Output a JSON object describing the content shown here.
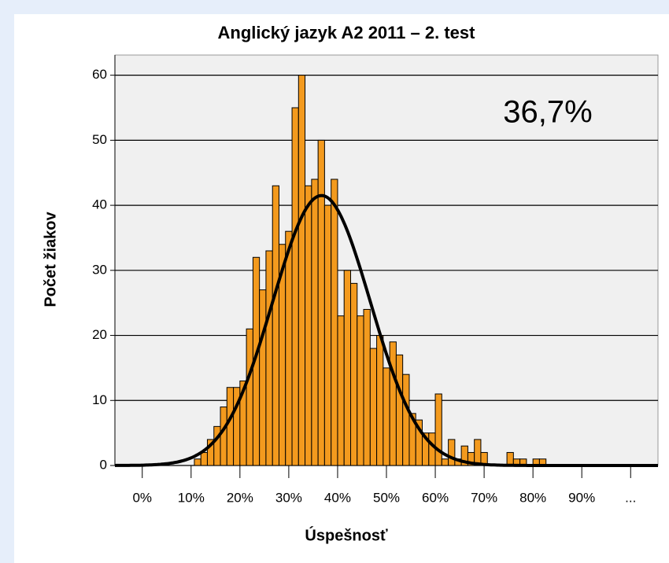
{
  "chart_data": {
    "type": "histogram",
    "title": "Anglický jazyk A2 2011 – 2. test",
    "x_label": "Úspešnosť",
    "y_label": "Počet žiakov",
    "annotation": "36,7%",
    "color": "#f39a1e",
    "bins": [
      10.67,
      12,
      13.33,
      14.67,
      16,
      17.33,
      18.67,
      20,
      21.33,
      22.67,
      24,
      25.33,
      26.67,
      28,
      29.33,
      30.67,
      32,
      33.33,
      34.67,
      36,
      37.33,
      38.67,
      40,
      41.33,
      42.67,
      44,
      45.33,
      46.67,
      48,
      49.33,
      50.67,
      52,
      53.33,
      54.67,
      56,
      57.33,
      58.67,
      60,
      61.33,
      62.67,
      64,
      65.33,
      66.67,
      68,
      69.33,
      70.67,
      72,
      73.33,
      74.67,
      76,
      77.33,
      78.67,
      80,
      81.33,
      82.67
    ],
    "values": [
      1,
      2,
      4,
      6,
      9,
      12,
      12,
      13,
      21,
      32,
      27,
      33,
      43,
      34,
      36,
      55,
      60,
      43,
      44,
      50,
      40,
      44,
      23,
      30,
      28,
      23,
      24,
      18,
      20,
      15,
      19,
      17,
      14,
      8,
      7,
      5,
      5,
      11,
      1,
      4,
      1,
      3,
      2,
      4,
      2,
      0,
      0,
      0,
      2,
      1,
      1,
      0,
      1,
      1
    ],
    "curve": {
      "mean": 36.7,
      "sd": 10,
      "peak": 41.5,
      "color": "#000000"
    },
    "xlim": [
      -5.6,
      105.6
    ],
    "ylim": [
      0,
      63.1
    ],
    "xticks": [
      {
        "value": 0,
        "label": "0%"
      },
      {
        "value": 10,
        "label": "10%"
      },
      {
        "value": 20,
        "label": "20%"
      },
      {
        "value": 30,
        "label": "30%"
      },
      {
        "value": 40,
        "label": "40%"
      },
      {
        "value": 50,
        "label": "50%"
      },
      {
        "value": 60,
        "label": "60%"
      },
      {
        "value": 70,
        "label": "70%"
      },
      {
        "value": 80,
        "label": "80%"
      },
      {
        "value": 90,
        "label": "90%"
      },
      {
        "value": 100,
        "label": "..."
      }
    ],
    "yticks": [
      0,
      10,
      20,
      30,
      40,
      50,
      60
    ],
    "grid": true
  }
}
